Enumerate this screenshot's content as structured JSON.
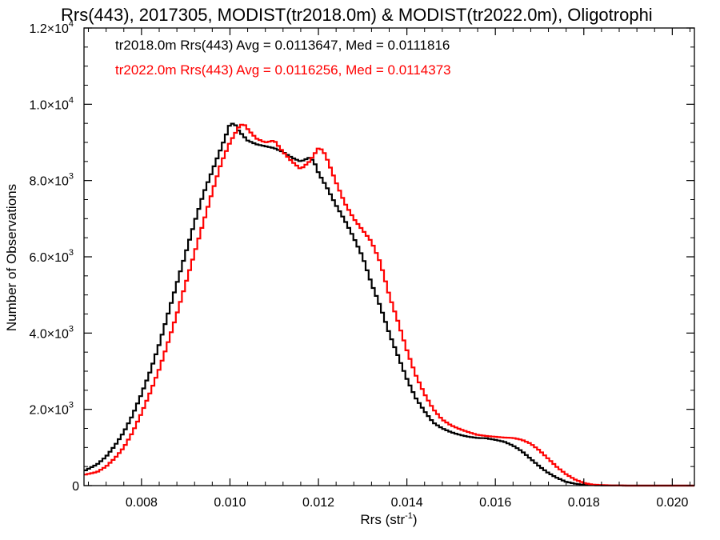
{
  "chart_data": {
    "type": "line",
    "title": "Rrs(443), 2017305, MODIST(tr2018.0m) & MODIST(tr2022.0m), Oligotrophi",
    "xlabel_main": "Rrs (str",
    "xlabel_exp": "-1",
    "xlabel_close": ")",
    "ylabel": "Number of Observations",
    "xlim": [
      0.0067,
      0.0205
    ],
    "ylim": [
      0,
      12000
    ],
    "xticks": [
      {
        "value": 0.008,
        "label": "0.008"
      },
      {
        "value": 0.01,
        "label": "0.010"
      },
      {
        "value": 0.012,
        "label": "0.012"
      },
      {
        "value": 0.014,
        "label": "0.014"
      },
      {
        "value": 0.016,
        "label": "0.016"
      },
      {
        "value": 0.018,
        "label": "0.018"
      },
      {
        "value": 0.02,
        "label": "0.020"
      }
    ],
    "yticks": [
      {
        "value": 0,
        "mant": "0",
        "exp": ""
      },
      {
        "value": 2000,
        "mant": "2.0×10",
        "exp": "3"
      },
      {
        "value": 4000,
        "mant": "4.0×10",
        "exp": "3"
      },
      {
        "value": 6000,
        "mant": "6.0×10",
        "exp": "3"
      },
      {
        "value": 8000,
        "mant": "8.0×10",
        "exp": "3"
      },
      {
        "value": 10000,
        "mant": "1.0×10",
        "exp": "4"
      },
      {
        "value": 12000,
        "mant": "1.2×10",
        "exp": "4"
      }
    ],
    "annotations": [
      {
        "text": "tr2018.0m Rrs(443) Avg = 0.0113647, Med = 0.0111816",
        "color": "#000000"
      },
      {
        "text": "tr2022.0m Rrs(443) Avg = 0.0116256, Med = 0.0114373",
        "color": "#ff0000"
      }
    ],
    "series": [
      {
        "color": "#000000",
        "points": [
          [
            0.0067,
            380
          ],
          [
            0.007,
            560
          ],
          [
            0.0072,
            760
          ],
          [
            0.0074,
            1050
          ],
          [
            0.0076,
            1400
          ],
          [
            0.0078,
            1850
          ],
          [
            0.008,
            2400
          ],
          [
            0.0082,
            3000
          ],
          [
            0.0084,
            3700
          ],
          [
            0.0086,
            4500
          ],
          [
            0.0088,
            5300
          ],
          [
            0.009,
            6100
          ],
          [
            0.0092,
            6900
          ],
          [
            0.0094,
            7650
          ],
          [
            0.0096,
            8250
          ],
          [
            0.0098,
            8850
          ],
          [
            0.0099,
            9150
          ],
          [
            0.01,
            9480
          ],
          [
            0.0101,
            9500
          ],
          [
            0.0102,
            9300
          ],
          [
            0.0104,
            9050
          ],
          [
            0.0106,
            8950
          ],
          [
            0.0108,
            8900
          ],
          [
            0.011,
            8850
          ],
          [
            0.0112,
            8750
          ],
          [
            0.0114,
            8600
          ],
          [
            0.0116,
            8500
          ],
          [
            0.0118,
            8600
          ],
          [
            0.0119,
            8500
          ],
          [
            0.012,
            8200
          ],
          [
            0.0122,
            7800
          ],
          [
            0.0124,
            7350
          ],
          [
            0.0126,
            6950
          ],
          [
            0.0128,
            6500
          ],
          [
            0.013,
            6000
          ],
          [
            0.0132,
            5300
          ],
          [
            0.0134,
            4700
          ],
          [
            0.0136,
            4000
          ],
          [
            0.0138,
            3400
          ],
          [
            0.014,
            2800
          ],
          [
            0.0142,
            2300
          ],
          [
            0.0144,
            1950
          ],
          [
            0.0146,
            1650
          ],
          [
            0.0148,
            1500
          ],
          [
            0.015,
            1400
          ],
          [
            0.0152,
            1330
          ],
          [
            0.0154,
            1280
          ],
          [
            0.0156,
            1250
          ],
          [
            0.0158,
            1240
          ],
          [
            0.016,
            1200
          ],
          [
            0.0162,
            1150
          ],
          [
            0.0164,
            1050
          ],
          [
            0.0166,
            900
          ],
          [
            0.0168,
            700
          ],
          [
            0.017,
            500
          ],
          [
            0.0172,
            330
          ],
          [
            0.0174,
            200
          ],
          [
            0.0176,
            100
          ],
          [
            0.0178,
            50
          ],
          [
            0.018,
            20
          ],
          [
            0.0184,
            5
          ],
          [
            0.019,
            0
          ],
          [
            0.0205,
            0
          ]
        ]
      },
      {
        "color": "#ff0000",
        "points": [
          [
            0.0067,
            280
          ],
          [
            0.007,
            360
          ],
          [
            0.0072,
            500
          ],
          [
            0.0074,
            720
          ],
          [
            0.0076,
            1000
          ],
          [
            0.0078,
            1400
          ],
          [
            0.008,
            1900
          ],
          [
            0.0082,
            2450
          ],
          [
            0.0084,
            3050
          ],
          [
            0.0086,
            3750
          ],
          [
            0.0088,
            4500
          ],
          [
            0.009,
            5300
          ],
          [
            0.0092,
            6100
          ],
          [
            0.0094,
            6900
          ],
          [
            0.0096,
            7700
          ],
          [
            0.0098,
            8450
          ],
          [
            0.01,
            9000
          ],
          [
            0.0102,
            9400
          ],
          [
            0.0103,
            9500
          ],
          [
            0.0104,
            9350
          ],
          [
            0.0106,
            9100
          ],
          [
            0.0108,
            9000
          ],
          [
            0.011,
            9050
          ],
          [
            0.0112,
            8750
          ],
          [
            0.0114,
            8500
          ],
          [
            0.0116,
            8300
          ],
          [
            0.0118,
            8500
          ],
          [
            0.012,
            8850
          ],
          [
            0.0121,
            8800
          ],
          [
            0.0122,
            8550
          ],
          [
            0.0124,
            7950
          ],
          [
            0.0126,
            7400
          ],
          [
            0.0128,
            7000
          ],
          [
            0.013,
            6700
          ],
          [
            0.0132,
            6400
          ],
          [
            0.0134,
            5850
          ],
          [
            0.0136,
            5000
          ],
          [
            0.0138,
            4300
          ],
          [
            0.014,
            3550
          ],
          [
            0.0142,
            2900
          ],
          [
            0.0144,
            2400
          ],
          [
            0.0146,
            2000
          ],
          [
            0.0148,
            1730
          ],
          [
            0.015,
            1580
          ],
          [
            0.0152,
            1480
          ],
          [
            0.0154,
            1400
          ],
          [
            0.0156,
            1330
          ],
          [
            0.0158,
            1300
          ],
          [
            0.016,
            1280
          ],
          [
            0.0162,
            1260
          ],
          [
            0.0164,
            1250
          ],
          [
            0.0166,
            1200
          ],
          [
            0.0168,
            1100
          ],
          [
            0.017,
            920
          ],
          [
            0.0172,
            700
          ],
          [
            0.0174,
            480
          ],
          [
            0.0176,
            300
          ],
          [
            0.0178,
            160
          ],
          [
            0.018,
            70
          ],
          [
            0.0182,
            25
          ],
          [
            0.0186,
            5
          ],
          [
            0.019,
            0
          ],
          [
            0.0205,
            0
          ]
        ]
      }
    ]
  }
}
